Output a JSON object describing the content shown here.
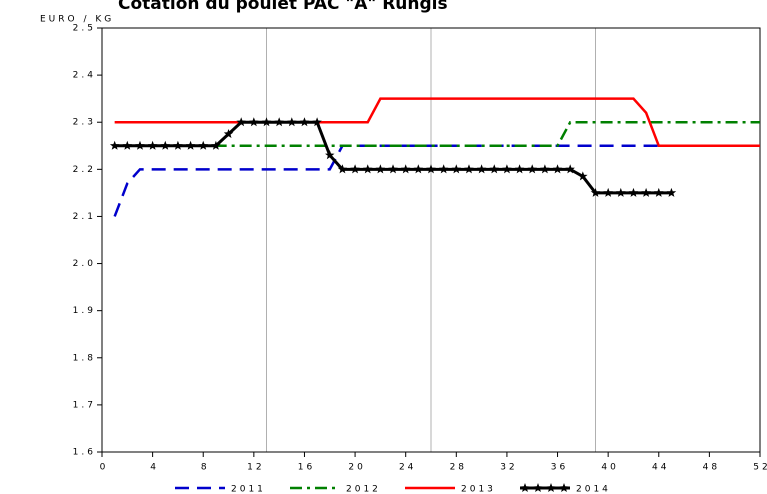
{
  "chart_data": {
    "type": "line",
    "title": "Cotation du poulet PAC \"A\" Rungis",
    "y_label": "EURO / KG",
    "x": [
      1,
      2,
      3,
      4,
      5,
      6,
      7,
      8,
      9,
      10,
      11,
      12,
      13,
      14,
      15,
      16,
      17,
      18,
      19,
      20,
      21,
      22,
      23,
      24,
      25,
      26,
      27,
      28,
      29,
      30,
      31,
      32,
      33,
      34,
      35,
      36,
      37,
      38,
      39,
      40,
      41,
      42,
      43,
      44,
      45,
      46,
      47,
      48,
      49,
      50,
      51,
      52
    ],
    "series": [
      {
        "name": "2011",
        "color": "#0000cc",
        "style": "dashed",
        "values": [
          2.1,
          2.17,
          2.2,
          2.2,
          2.2,
          2.2,
          2.2,
          2.2,
          2.2,
          2.2,
          2.2,
          2.2,
          2.2,
          2.2,
          2.2,
          2.2,
          2.2,
          2.2,
          2.25,
          2.25,
          2.25,
          2.25,
          2.25,
          2.25,
          2.25,
          2.25,
          2.25,
          2.25,
          2.25,
          2.25,
          2.25,
          2.25,
          2.25,
          2.25,
          2.25,
          2.25,
          2.25,
          2.25,
          2.25,
          2.25,
          2.25,
          2.25,
          2.25,
          2.25,
          2.25,
          2.25,
          2.25,
          2.25,
          null,
          null,
          null,
          null
        ]
      },
      {
        "name": "2012",
        "color": "#008000",
        "style": "dashdot",
        "values": [
          2.25,
          2.25,
          2.25,
          2.25,
          2.25,
          2.25,
          2.25,
          2.25,
          2.25,
          2.25,
          2.25,
          2.25,
          2.25,
          2.25,
          2.25,
          2.25,
          2.25,
          2.25,
          2.25,
          2.25,
          2.25,
          2.25,
          2.25,
          2.25,
          2.25,
          2.25,
          2.25,
          2.25,
          2.25,
          2.25,
          2.25,
          2.25,
          2.25,
          2.25,
          2.25,
          2.25,
          2.3,
          2.3,
          2.3,
          2.3,
          2.3,
          2.3,
          2.3,
          2.3,
          2.3,
          2.3,
          2.3,
          2.3,
          2.3,
          2.3,
          2.3,
          2.3
        ]
      },
      {
        "name": "2013",
        "color": "#ff0000",
        "style": "solid",
        "values": [
          2.3,
          2.3,
          2.3,
          2.3,
          2.3,
          2.3,
          2.3,
          2.3,
          2.3,
          2.3,
          2.3,
          2.3,
          2.3,
          2.3,
          2.3,
          2.3,
          2.3,
          2.3,
          2.3,
          2.3,
          2.3,
          2.35,
          2.35,
          2.35,
          2.35,
          2.35,
          2.35,
          2.35,
          2.35,
          2.35,
          2.35,
          2.35,
          2.35,
          2.35,
          2.35,
          2.35,
          2.35,
          2.35,
          2.35,
          2.35,
          2.35,
          2.35,
          2.32,
          2.25,
          2.25,
          2.25,
          2.25,
          2.25,
          2.25,
          2.25,
          2.25,
          2.25
        ]
      },
      {
        "name": "2014",
        "color": "#000000",
        "style": "solid",
        "marker": "star",
        "values": [
          2.25,
          2.25,
          2.25,
          2.25,
          2.25,
          2.25,
          2.25,
          2.25,
          2.25,
          2.275,
          2.3,
          2.3,
          2.3,
          2.3,
          2.3,
          2.3,
          2.3,
          2.23,
          2.2,
          2.2,
          2.2,
          2.2,
          2.2,
          2.2,
          2.2,
          2.2,
          2.2,
          2.2,
          2.2,
          2.2,
          2.2,
          2.2,
          2.2,
          2.2,
          2.2,
          2.2,
          2.2,
          2.185,
          2.15,
          2.15,
          2.15,
          2.15,
          2.15,
          2.15,
          2.15,
          null,
          null,
          null,
          null,
          null,
          null,
          null
        ]
      }
    ],
    "xlim": [
      0,
      52
    ],
    "xticks": [
      0,
      4,
      8,
      12,
      16,
      20,
      24,
      28,
      32,
      36,
      40,
      44,
      48,
      52
    ],
    "xgrid": [
      13,
      26,
      39
    ],
    "ylim": [
      1.6,
      2.5
    ],
    "yticks": [
      1.6,
      1.7,
      1.8,
      1.9,
      {
        "value": 2,
        "label": "2.0"
      },
      2.1,
      2.2,
      2.3,
      2.4,
      2.5
    ]
  }
}
